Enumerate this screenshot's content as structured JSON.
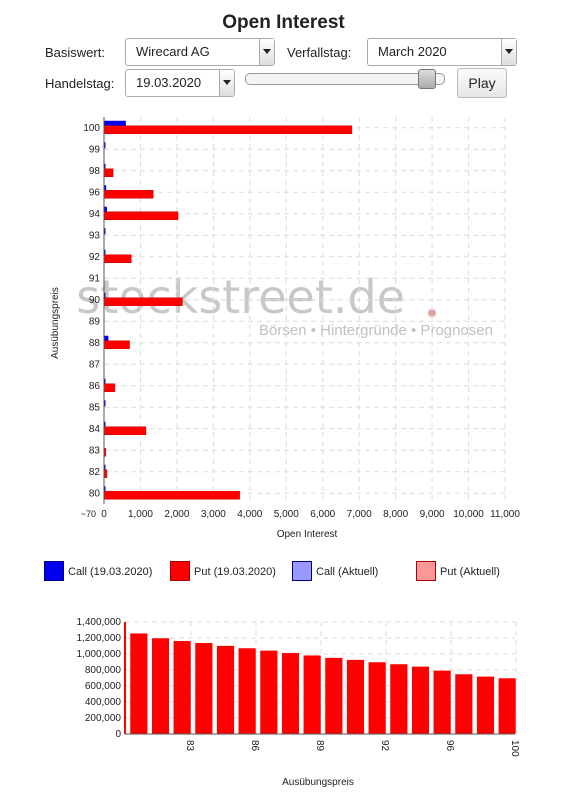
{
  "title": "Open Interest",
  "controls": {
    "basiswert_label": "Basiswert:",
    "basiswert_value": "Wirecard AG",
    "verfallstag_label": "Verfallstag:",
    "verfallstag_value": "March 2020",
    "handelstag_label": "Handelstag:",
    "handelstag_value": "19.03.2020",
    "slider_position": 0.95,
    "play_label": "Play"
  },
  "watermark": {
    "logo": "stockstreet.de",
    "tagline": "Börsen • Hintergründe • Prognosen"
  },
  "legend": {
    "items": [
      {
        "label": "Call (19.03.2020)",
        "color": "#0000ee"
      },
      {
        "label": "Put (19.03.2020)",
        "color": "#ff0000"
      },
      {
        "label": "Call (Aktuell)",
        "color": "#9999ff"
      },
      {
        "label": "Put (Aktuell)",
        "color": "#ff9999"
      }
    ]
  },
  "chart_data": [
    {
      "type": "bar",
      "orientation": "horizontal",
      "xlabel": "Open Interest",
      "ylabel": "Ausübungspreis",
      "xlim": [
        0,
        11000
      ],
      "xticks": [
        "0",
        "1,000",
        "2,000",
        "3,000",
        "4,000",
        "5,000",
        "6,000",
        "7,000",
        "8,000",
        "9,000",
        "10,000",
        "11,000"
      ],
      "categories": [
        "100",
        "99",
        "98",
        "96",
        "94",
        "93",
        "92",
        "91",
        "90",
        "89",
        "88",
        "87",
        "86",
        "85",
        "84",
        "83",
        "82",
        "80"
      ],
      "cut_tick_label": "~70",
      "series": [
        {
          "name": "Call (19.03.2020)",
          "color": "#0000ee",
          "values": [
            600,
            30,
            10,
            60,
            80,
            20,
            20,
            0,
            30,
            0,
            120,
            0,
            40,
            30,
            40,
            0,
            20,
            30
          ]
        },
        {
          "name": "Put (19.03.2020)",
          "color": "#ff0000",
          "values": [
            6800,
            0,
            250,
            1350,
            2030,
            0,
            750,
            0,
            2150,
            0,
            700,
            0,
            300,
            0,
            1150,
            50,
            80,
            3720
          ]
        }
      ],
      "grid": true
    },
    {
      "type": "bar",
      "xlabel": "Ausübungspreis",
      "ylim": [
        0,
        1400000
      ],
      "yticks": [
        "0",
        "200,000",
        "400,000",
        "600,000",
        "800,000",
        "1,000,000",
        "1,200,000",
        "1,400,000"
      ],
      "xtick_labels": [
        "83",
        "86",
        "89",
        "92",
        "96",
        "100"
      ],
      "categories": [
        "80",
        "82",
        "83",
        "84",
        "85",
        "86",
        "87",
        "88",
        "89",
        "90",
        "91",
        "92",
        "93",
        "94",
        "96",
        "98",
        "99",
        "100"
      ],
      "series": [
        {
          "name": "",
          "color": "#ff0000",
          "values": [
            1260000,
            1200000,
            1165000,
            1140000,
            1105000,
            1075000,
            1045000,
            1015000,
            985000,
            955000,
            930000,
            900000,
            875000,
            845000,
            795000,
            750000,
            720000,
            700000
          ]
        }
      ],
      "grid": true
    }
  ]
}
